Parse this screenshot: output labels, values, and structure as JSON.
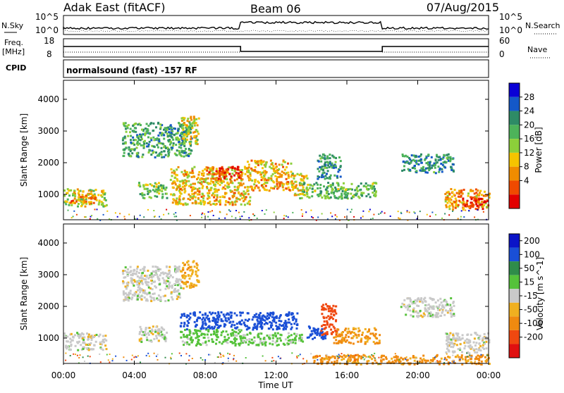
{
  "header": {
    "station": "Adak East (fitACF)",
    "beam": "Beam 06",
    "date": "07/Aug/2015"
  },
  "noise_panel": {
    "left_label": "N.Sky",
    "right_label": "N.Search",
    "left_ticks": [
      "10^5",
      "10^0"
    ],
    "right_ticks": [
      "10^5",
      "10^0"
    ]
  },
  "freq_panel": {
    "left_label_1": "Freq.",
    "left_label_2": "[MHz]",
    "left_ticks": [
      "18",
      "8"
    ],
    "right_label": "Nave",
    "right_ticks": [
      "60",
      "0"
    ]
  },
  "cpid": {
    "label": "CPID",
    "text": "normalsound (fast) -157 RF"
  },
  "colors": {
    "power_scale": [
      "#0a00d6",
      "#1458c8",
      "#2e8b66",
      "#4db35a",
      "#8ccf3a",
      "#f5c400",
      "#f08c00",
      "#f04a00",
      "#e20000"
    ],
    "velocity_scale": [
      "#0b14c8",
      "#1a4fd6",
      "#2f8c4a",
      "#55c23a",
      "#c9c9c9",
      "#f0b020",
      "#f08a10",
      "#f04810",
      "#e01010"
    ]
  },
  "chart_data": [
    {
      "type": "heatmap",
      "name": "power",
      "ylabel": "Slant Range [km]",
      "y_ticks": [
        "1000",
        "2000",
        "3000",
        "4000"
      ],
      "ylim": [
        200,
        4600
      ],
      "colorbar_label": "Power [dB]",
      "colorbar_ticks": [
        "28",
        "24",
        "20",
        "16",
        "12",
        "8",
        "4"
      ],
      "colorbar_range": [
        0,
        32
      ],
      "x_ticks": [
        "00:00",
        "04:00",
        "08:00",
        "12:00",
        "16:00",
        "20:00",
        "00:00"
      ],
      "xlim_hours": [
        0,
        24
      ],
      "regions": [
        {
          "t0": 0.0,
          "t1": 2.4,
          "r0": 650,
          "r1": 1200,
          "level": 0.55
        },
        {
          "t0": 0.3,
          "t1": 1.8,
          "r0": 750,
          "r1": 1000,
          "level": 0.75
        },
        {
          "t0": 4.2,
          "t1": 5.8,
          "r0": 900,
          "r1": 1400,
          "level": 0.45
        },
        {
          "t0": 3.3,
          "t1": 7.2,
          "r0": 2200,
          "r1": 3300,
          "level": 0.35
        },
        {
          "t0": 6.6,
          "t1": 7.6,
          "r0": 2600,
          "r1": 3500,
          "level": 0.6
        },
        {
          "t0": 6.0,
          "t1": 10.5,
          "r0": 700,
          "r1": 1900,
          "level": 0.62
        },
        {
          "t0": 8.0,
          "t1": 10.0,
          "r0": 1500,
          "r1": 1900,
          "level": 0.85
        },
        {
          "t0": 10.3,
          "t1": 12.8,
          "r0": 1150,
          "r1": 2100,
          "level": 0.65
        },
        {
          "t0": 12.8,
          "t1": 13.8,
          "r0": 1000,
          "r1": 1700,
          "level": 0.6
        },
        {
          "t0": 13.3,
          "t1": 17.6,
          "r0": 900,
          "r1": 1400,
          "level": 0.4
        },
        {
          "t0": 14.3,
          "t1": 15.6,
          "r0": 1500,
          "r1": 2300,
          "level": 0.3
        },
        {
          "t0": 19.0,
          "t1": 22.0,
          "r0": 1700,
          "r1": 2300,
          "level": 0.28
        },
        {
          "t0": 21.5,
          "t1": 24.0,
          "r0": 550,
          "r1": 1200,
          "level": 0.7
        },
        {
          "t0": 22.5,
          "t1": 24.0,
          "r0": 550,
          "r1": 900,
          "level": 0.9
        }
      ]
    },
    {
      "type": "heatmap",
      "name": "velocity",
      "ylabel": "Slant Range [km]",
      "y_ticks": [
        "1000",
        "2000",
        "3000",
        "4000"
      ],
      "ylim": [
        200,
        4600
      ],
      "colorbar_label": "Velocity [m s^-1]",
      "colorbar_ticks": [
        "200",
        "100",
        "50",
        "15",
        "-15",
        "-50",
        "-100",
        "-200"
      ],
      "colorbar_range": [
        -250,
        250
      ],
      "x_ticks": [
        "00:00",
        "04:00",
        "08:00",
        "12:00",
        "16:00",
        "20:00",
        "00:00"
      ],
      "xlim_hours": [
        0,
        24
      ],
      "xlabel": "Time UT",
      "regions": [
        {
          "t0": 0.0,
          "t1": 2.4,
          "r0": 650,
          "r1": 1200,
          "vel": 0
        },
        {
          "t0": 4.2,
          "t1": 5.8,
          "r0": 900,
          "r1": 1400,
          "vel": 0
        },
        {
          "t0": 3.3,
          "t1": 6.6,
          "r0": 2200,
          "r1": 3300,
          "vel": 0
        },
        {
          "t0": 6.6,
          "t1": 7.6,
          "r0": 2600,
          "r1": 3500,
          "vel": -40
        },
        {
          "t0": 6.5,
          "t1": 10.0,
          "r0": 800,
          "r1": 1300,
          "vel": 30
        },
        {
          "t0": 6.5,
          "t1": 13.2,
          "r0": 1300,
          "r1": 1850,
          "vel": 180
        },
        {
          "t0": 10.0,
          "t1": 13.5,
          "r0": 800,
          "r1": 1200,
          "vel": 25
        },
        {
          "t0": 13.5,
          "t1": 14.8,
          "r0": 1000,
          "r1": 1400,
          "vel": 150
        },
        {
          "t0": 14.5,
          "t1": 15.4,
          "r0": 1100,
          "r1": 2100,
          "vel": -150
        },
        {
          "t0": 15.2,
          "t1": 17.8,
          "r0": 850,
          "r1": 1350,
          "vel": -60
        },
        {
          "t0": 14.0,
          "t1": 24.0,
          "r0": 200,
          "r1": 500,
          "vel": -60
        },
        {
          "t0": 19.0,
          "t1": 22.0,
          "r0": 1700,
          "r1": 2300,
          "vel": 0
        },
        {
          "t0": 21.5,
          "t1": 24.0,
          "r0": 550,
          "r1": 1200,
          "vel": 0
        }
      ]
    }
  ]
}
